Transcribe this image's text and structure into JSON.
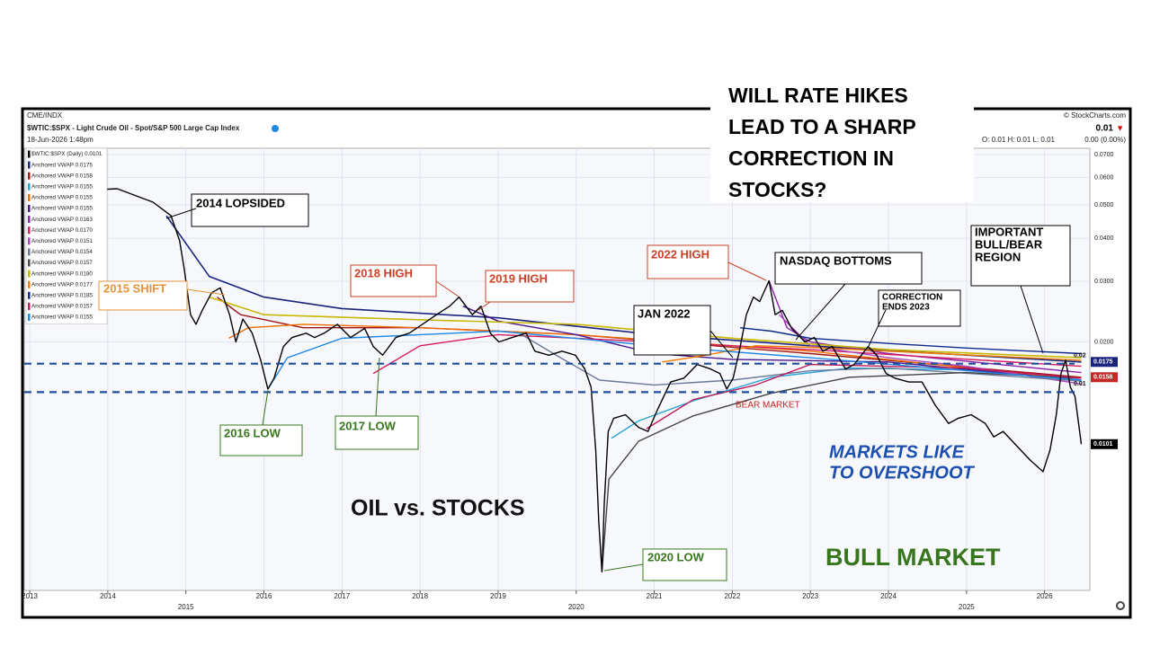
{
  "headline": [
    "WILL RATE HIKES",
    "LEAD TO A SHARP",
    "CORRECTION IN",
    "STOCKS?"
  ],
  "header": {
    "exchange": "CME/INDX",
    "title": "$WTIC:$SPX - Light Crude Oil - Spot/S&P 500 Large Cap Index",
    "date": "18-Jun-2026 1:48pm",
    "copyright": "© StockCharts.com",
    "last": "0.01",
    "change_arrow": "▼",
    "ohlc": "O: 0.01   H: 0.01   L: 0.01",
    "change": "0.00 (0.00%)"
  },
  "annotations": {
    "lopsided": "2014 LOPSIDED",
    "shift": "2015 SHIFT",
    "low2016": "2016 LOW",
    "low2017": "2017 LOW",
    "high2018": "2018 HIGH",
    "high2019": "2019 HIGH",
    "high2022": "2022 HIGH",
    "nasdaq": "NASDAQ BOTTOMS",
    "jan2022": "JAN 2022",
    "correction": [
      "CORRECTION",
      "ENDS 2023"
    ],
    "bullbear": [
      "IMPORTANT",
      "BULL/BEAR",
      "REGION"
    ],
    "low2020": "2020 LOW",
    "bear": "BEAR MARKET",
    "overshoot": [
      "MARKETS LIKE",
      "TO OVERSHOOT"
    ],
    "oil": "OIL vs. STOCKS",
    "bull": "BULL MARKET"
  },
  "chart_data": {
    "type": "line",
    "log_y": true,
    "grid": true,
    "xlim": [
      2012.93,
      2026.58
    ],
    "ylim": [
      0.0038,
      0.073
    ],
    "xticks": [
      2013,
      2014,
      2015,
      2016,
      2017,
      2018,
      2019,
      2020,
      2021,
      2022,
      2023,
      2024,
      2025,
      2026
    ],
    "yticks": [
      {
        "value": 0.02,
        "label": "0.0200"
      },
      {
        "value": 0.03,
        "label": "0.0300"
      },
      {
        "value": 0.04,
        "label": "0.0400"
      },
      {
        "value": 0.05,
        "label": "0.0500"
      },
      {
        "value": 0.06,
        "label": "0.0600"
      },
      {
        "value": 0.07,
        "label": "0.0700"
      }
    ],
    "hlines": [
      {
        "value": 0.0173,
        "label": "0.02",
        "color": "#1f4e9c"
      },
      {
        "value": 0.0143,
        "label": "0.01",
        "color": "#1f4e9c"
      }
    ],
    "price_tags": [
      {
        "value": 0.0175,
        "label": "0.0175",
        "color": "#1a237e"
      },
      {
        "value": 0.0158,
        "label": "0.0158",
        "color": "#c62828"
      },
      {
        "value": 0.0101,
        "label": "0.0101",
        "color": "#000000"
      }
    ],
    "series": [
      {
        "name": "$WTIC:$SPX (Daily) 0.0101",
        "color": "#000000",
        "width": 1.4,
        "x": [
          2012.97,
          2013.31,
          2013.66,
          2014.12,
          2014.58,
          2014.81,
          2014.92,
          2014.98,
          2015.06,
          2015.13,
          2015.21,
          2015.33,
          2015.44,
          2015.56,
          2015.64,
          2015.73,
          2015.85,
          2015.96,
          2016.05,
          2016.13,
          2016.25,
          2016.36,
          2016.54,
          2016.65,
          2016.77,
          2016.94,
          2017.11,
          2017.29,
          2017.4,
          2017.52,
          2017.69,
          2017.86,
          2018.03,
          2018.21,
          2018.38,
          2018.5,
          2018.67,
          2018.78,
          2018.9,
          2019.01,
          2019.18,
          2019.36,
          2019.47,
          2019.65,
          2019.82,
          2019.99,
          2020.11,
          2020.19,
          2020.25,
          2020.29,
          2020.33,
          2020.36,
          2020.41,
          2020.48,
          2020.63,
          2020.8,
          2020.92,
          2021.04,
          2021.21,
          2021.38,
          2021.55,
          2021.72,
          2021.84,
          2021.93,
          2022.01,
          2022.09,
          2022.18,
          2022.27,
          2022.35,
          2022.47,
          2022.55,
          2022.64,
          2022.76,
          2022.93,
          2023.05,
          2023.16,
          2023.28,
          2023.45,
          2023.56,
          2023.74,
          2023.85,
          2023.97,
          2024.08,
          2024.26,
          2024.43,
          2024.6,
          2024.77,
          2024.89,
          2025.06,
          2025.24,
          2025.35,
          2025.47,
          2025.64,
          2025.81,
          2025.98,
          2026.07,
          2026.15,
          2026.21,
          2026.27,
          2026.33,
          2026.39,
          2026.47
        ],
        "values": [
          0.0557,
          0.054,
          0.055,
          0.0557,
          0.0509,
          0.0465,
          0.0393,
          0.0324,
          0.024,
          0.0225,
          0.0247,
          0.0278,
          0.0287,
          0.024,
          0.02,
          0.0233,
          0.0212,
          0.0177,
          0.0146,
          0.0157,
          0.0194,
          0.0206,
          0.0212,
          0.0206,
          0.0212,
          0.0225,
          0.0206,
          0.0219,
          0.0194,
          0.0183,
          0.0206,
          0.0212,
          0.0225,
          0.024,
          0.0254,
          0.027,
          0.024,
          0.0254,
          0.0212,
          0.02,
          0.0206,
          0.0212,
          0.0188,
          0.0183,
          0.0188,
          0.0183,
          0.0167,
          0.0148,
          0.0097,
          0.006,
          0.0043,
          0.0068,
          0.011,
          0.012,
          0.0123,
          0.0113,
          0.011,
          0.0127,
          0.0153,
          0.0157,
          0.0172,
          0.0167,
          0.0162,
          0.0146,
          0.0157,
          0.0188,
          0.024,
          0.027,
          0.0262,
          0.0301,
          0.024,
          0.0247,
          0.0219,
          0.02,
          0.0206,
          0.0188,
          0.0194,
          0.0167,
          0.0172,
          0.0194,
          0.0183,
          0.0162,
          0.0157,
          0.0153,
          0.0153,
          0.0131,
          0.0116,
          0.012,
          0.0123,
          0.0116,
          0.0106,
          0.011,
          0.01,
          0.0091,
          0.0084,
          0.0097,
          0.0123,
          0.0162,
          0.0177,
          0.0148,
          0.0139,
          0.0101
        ]
      },
      {
        "name": "Anchored VWAP 0.0175",
        "color": "#1a237e",
        "width": 1.6,
        "x": [
          2014.75,
          2015.3,
          2016,
          2017,
          2019,
          2021,
          2023,
          2026.47
        ],
        "values": [
          0.0465,
          0.031,
          0.027,
          0.025,
          0.0235,
          0.021,
          0.0195,
          0.0175
        ]
      },
      {
        "name": "Anchored VWAP 0.0158",
        "color": "#a31515",
        "width": 1.4,
        "x": [
          2015.4,
          2015.7,
          2016.5,
          2018,
          2020,
          2023,
          2026.47
        ],
        "values": [
          0.027,
          0.024,
          0.022,
          0.022,
          0.021,
          0.0185,
          0.0158
        ]
      },
      {
        "name": "Anchored VWAP 0.0155",
        "color": "#29a3d6",
        "width": 1.4,
        "x": [
          2020.45,
          2020.8,
          2021.5,
          2022.5,
          2023.5,
          2025,
          2026.47
        ],
        "values": [
          0.0105,
          0.0118,
          0.0135,
          0.0158,
          0.0168,
          0.0166,
          0.0155
        ]
      },
      {
        "name": "Anchored VWAP 0.0155",
        "color": "#ef6c00",
        "width": 1.4,
        "x": [
          2015.55,
          2015.8,
          2016.5,
          2018,
          2020,
          2023,
          2026.47
        ],
        "values": [
          0.0205,
          0.022,
          0.0225,
          0.022,
          0.021,
          0.0188,
          0.0155
        ]
      },
      {
        "name": "Anchored VWAP 0.0155",
        "color": "#4a148c",
        "width": 1.4,
        "x": [
          2018.55,
          2019,
          2020,
          2021,
          2022,
          2024,
          2026.47
        ],
        "values": [
          0.0254,
          0.023,
          0.021,
          0.0185,
          0.0178,
          0.0175,
          0.0155
        ]
      },
      {
        "name": "Anchored VWAP 0.0163",
        "color": "#8e24aa",
        "width": 1.4,
        "x": [
          2022.47,
          2022.7,
          2023,
          2024,
          2026.47
        ],
        "values": [
          0.0301,
          0.022,
          0.02,
          0.0185,
          0.0163
        ]
      },
      {
        "name": "Anchored VWAP 0.0170",
        "color": "#d81b60",
        "width": 1.4,
        "x": [
          2017.4,
          2018,
          2019,
          2021,
          2023,
          2026.47
        ],
        "values": [
          0.0162,
          0.0195,
          0.021,
          0.02,
          0.019,
          0.017
        ]
      },
      {
        "name": "Anchored VWAP 0.0151",
        "color": "#ab47bc",
        "width": 1.4,
        "x": [
          2022.6,
          2023,
          2024,
          2025,
          2026.47
        ],
        "values": [
          0.024,
          0.0195,
          0.018,
          0.017,
          0.0151
        ]
      },
      {
        "name": "Anchored VWAP 0.0154",
        "color": "#6a7899",
        "width": 1.4,
        "x": [
          2019.3,
          2019.8,
          2020.3,
          2021,
          2022,
          2023,
          2024,
          2026.47
        ],
        "values": [
          0.021,
          0.018,
          0.0155,
          0.015,
          0.0155,
          0.0165,
          0.0168,
          0.0154
        ]
      },
      {
        "name": "Anchored VWAP 0.0157",
        "color": "#444444",
        "width": 1.4,
        "x": [
          2020.33,
          2020.42,
          2020.8,
          2021.5,
          2022.5,
          2023.5,
          2025,
          2026.47
        ],
        "values": [
          0.0043,
          0.008,
          0.0103,
          0.0122,
          0.0142,
          0.0158,
          0.0163,
          0.0157
        ]
      },
      {
        "name": "Anchored VWAP 0.0180",
        "color": "#c9b800",
        "width": 1.6,
        "x": [
          2015.3,
          2016,
          2018,
          2020,
          2022,
          2024,
          2026.47
        ],
        "values": [
          0.027,
          0.024,
          0.0232,
          0.0225,
          0.0205,
          0.019,
          0.018
        ]
      },
      {
        "name": "Anchored VWAP 0.0177",
        "color": "#f57c00",
        "width": 1.4,
        "x": [
          2021.1,
          2021.6,
          2022.3,
          2023,
          2024,
          2026.47
        ],
        "values": [
          0.0175,
          0.0182,
          0.0195,
          0.0193,
          0.0188,
          0.0177
        ]
      },
      {
        "name": "Anchored VWAP 0.0185",
        "color": "#0d2a8a",
        "width": 1.4,
        "x": [
          2022.1,
          2022.5,
          2023,
          2024,
          2025,
          2026.47
        ],
        "values": [
          0.022,
          0.0215,
          0.0205,
          0.0198,
          0.0192,
          0.0185
        ]
      },
      {
        "name": "Anchored VWAP 0.0157",
        "color": "#c2185b",
        "width": 1.4,
        "x": [
          2020.9,
          2021.5,
          2022.3,
          2023,
          2025,
          2026.47
        ],
        "values": [
          0.0112,
          0.0136,
          0.015,
          0.0172,
          0.0168,
          0.0157
        ]
      },
      {
        "name": "Anchored VWAP 0.0155",
        "color": "#1e88e5",
        "width": 1.4,
        "x": [
          2016.05,
          2016.3,
          2017,
          2019,
          2021,
          2023,
          2026.47
        ],
        "values": [
          0.0146,
          0.018,
          0.0205,
          0.0215,
          0.0195,
          0.018,
          0.0155
        ]
      }
    ]
  }
}
